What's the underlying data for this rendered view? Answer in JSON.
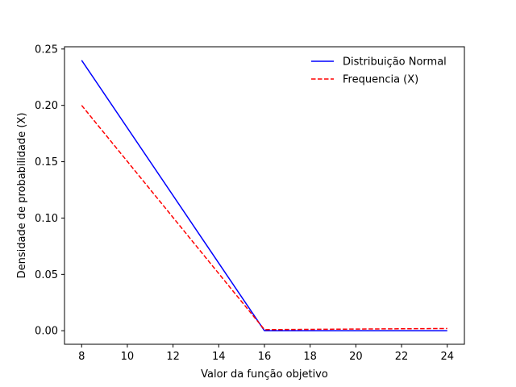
{
  "chart_data": {
    "type": "line",
    "xlabel": "Valor da função objetivo",
    "ylabel": "Densidade de probabilidade (X)",
    "xlim": [
      7.25,
      24.75
    ],
    "ylim": [
      -0.012,
      0.252
    ],
    "xticks": [
      8,
      10,
      12,
      14,
      16,
      18,
      20,
      22,
      24
    ],
    "yticks": [
      0.0,
      0.05,
      0.1,
      0.15,
      0.2,
      0.25
    ],
    "ytick_format": 2,
    "grid": false,
    "legend_position": "top-right",
    "series": [
      {
        "name": "Distribuição Normal",
        "color": "#0000ff",
        "style": "solid",
        "x": [
          8,
          16,
          24
        ],
        "y": [
          0.24,
          0.0,
          0.0
        ]
      },
      {
        "name": "Frequencia (X)",
        "color": "#ff0000",
        "style": "dashed",
        "x": [
          8,
          16,
          24
        ],
        "y": [
          0.2,
          0.001,
          0.002
        ]
      }
    ]
  }
}
